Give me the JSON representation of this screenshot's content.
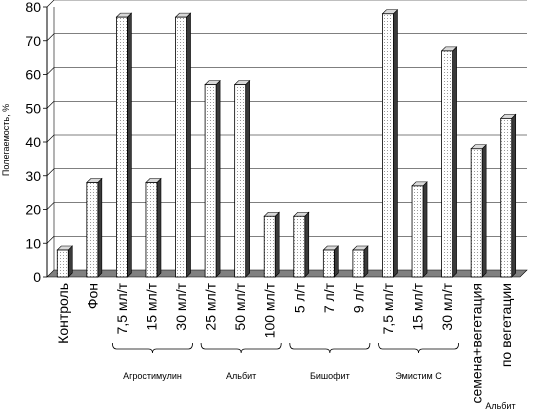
{
  "chart_data": {
    "type": "bar",
    "title": "",
    "xlabel": "",
    "ylabel": "Полегаемость, %",
    "ylim": [
      0,
      80
    ],
    "yticks": [
      "0",
      "10",
      "20",
      "30",
      "40",
      "50",
      "60",
      "70",
      "80"
    ],
    "grid": true,
    "categories": [
      "Контроль",
      "Фон",
      "7,5 мл/т",
      "15 мл/т",
      "30 мл/т",
      "25 мл/т",
      "50 мл/т",
      "100 мл/т",
      "5 л/т",
      "7 л/т",
      "9 л/т",
      "7,5 мл/т",
      "15 мл/т",
      "30 мл/т",
      "семена+вегетация",
      "по вегетации"
    ],
    "values": [
      8,
      28,
      77,
      28,
      77,
      57,
      57,
      18,
      18,
      8,
      8,
      78,
      27,
      67,
      38,
      47
    ],
    "groups": [
      {
        "label": "Агростимулин",
        "from": 2,
        "to": 4
      },
      {
        "label": "Альбит",
        "from": 5,
        "to": 7
      },
      {
        "label": "Бишофит",
        "from": 8,
        "to": 10
      },
      {
        "label": "Эмистим С",
        "from": 11,
        "to": 13
      },
      {
        "label": "Альбит",
        "from": 14,
        "to": 15
      }
    ]
  }
}
